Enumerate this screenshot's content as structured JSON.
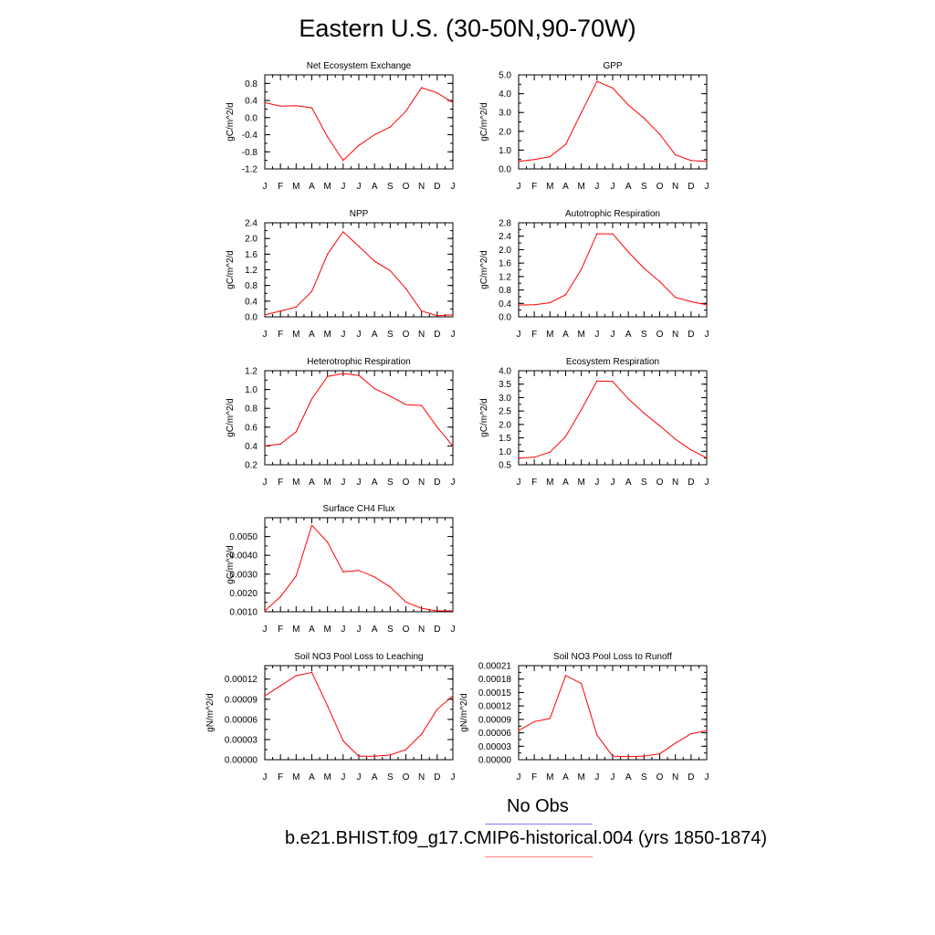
{
  "title": "Eastern U.S. (30-50N,90-70W)",
  "legend": {
    "obs_label": "No Obs",
    "obs_color": "#7f7fff",
    "model_label": "b.e21.BHIST.f09_g17.CMIP6-historical.004 (yrs 1850-1874)",
    "model_color": "#ff7f7f"
  },
  "line_color": "#ff0000",
  "chart_data": [
    {
      "type": "line",
      "title": "Net Ecosystem Exchange",
      "ylabel": "gC/m^2/d",
      "x": [
        "J",
        "F",
        "M",
        "A",
        "M",
        "J",
        "J",
        "A",
        "S",
        "O",
        "N",
        "D",
        "J"
      ],
      "ylim": [
        -1.2,
        1.0
      ],
      "yticks": [
        "-1.2",
        "-0.8",
        "-0.4",
        "0.0",
        "0.4",
        "0.8"
      ],
      "values": [
        0.35,
        0.27,
        0.28,
        0.23,
        -0.45,
        -1.0,
        -0.65,
        -0.4,
        -0.22,
        0.15,
        0.7,
        0.58,
        0.35
      ]
    },
    {
      "type": "line",
      "title": "GPP",
      "ylabel": "gC/m^2/d",
      "x": [
        "J",
        "F",
        "M",
        "A",
        "M",
        "J",
        "J",
        "A",
        "S",
        "O",
        "N",
        "D",
        "J"
      ],
      "ylim": [
        0.0,
        5.0
      ],
      "yticks": [
        "0.0",
        "1.0",
        "2.0",
        "3.0",
        "4.0",
        "5.0"
      ],
      "values": [
        0.4,
        0.5,
        0.65,
        1.3,
        3.0,
        4.65,
        4.3,
        3.4,
        2.7,
        1.85,
        0.75,
        0.45,
        0.4
      ]
    },
    {
      "type": "line",
      "title": "NPP",
      "ylabel": "gC/m^2/d",
      "x": [
        "J",
        "F",
        "M",
        "A",
        "M",
        "J",
        "J",
        "A",
        "S",
        "O",
        "N",
        "D",
        "J"
      ],
      "ylim": [
        0.0,
        2.4
      ],
      "yticks": [
        "0.0",
        "0.4",
        "0.8",
        "1.2",
        "1.6",
        "2.0",
        "2.4"
      ],
      "values": [
        0.05,
        0.15,
        0.25,
        0.65,
        1.6,
        2.17,
        1.8,
        1.42,
        1.18,
        0.72,
        0.15,
        0.03,
        0.05
      ]
    },
    {
      "type": "line",
      "title": "Autotrophic Respiration",
      "ylabel": "gC/m^2/d",
      "x": [
        "J",
        "F",
        "M",
        "A",
        "M",
        "J",
        "J",
        "A",
        "S",
        "O",
        "N",
        "D",
        "J"
      ],
      "ylim": [
        0.0,
        2.8
      ],
      "yticks": [
        "0.0",
        "0.4",
        "0.8",
        "1.2",
        "1.6",
        "2.0",
        "2.4",
        "2.8"
      ],
      "values": [
        0.35,
        0.36,
        0.42,
        0.66,
        1.42,
        2.47,
        2.47,
        1.93,
        1.45,
        1.05,
        0.58,
        0.45,
        0.36
      ]
    },
    {
      "type": "line",
      "title": "Heterotrophic Respiration",
      "ylabel": "gC/m^2/d",
      "x": [
        "J",
        "F",
        "M",
        "A",
        "M",
        "J",
        "J",
        "A",
        "S",
        "O",
        "N",
        "D",
        "J"
      ],
      "ylim": [
        0.2,
        1.2
      ],
      "yticks": [
        "0.2",
        "0.4",
        "0.6",
        "0.8",
        "1.0",
        "1.2"
      ],
      "values": [
        0.4,
        0.42,
        0.55,
        0.9,
        1.14,
        1.17,
        1.15,
        1.01,
        0.93,
        0.84,
        0.83,
        0.6,
        0.4
      ]
    },
    {
      "type": "line",
      "title": "Ecosystem Respiration",
      "ylabel": "gC/m^2/d",
      "x": [
        "J",
        "F",
        "M",
        "A",
        "M",
        "J",
        "J",
        "A",
        "S",
        "O",
        "N",
        "D",
        "J"
      ],
      "ylim": [
        0.5,
        4.0
      ],
      "yticks": [
        "0.5",
        "1.0",
        "1.5",
        "2.0",
        "2.5",
        "3.0",
        "3.5",
        "4.0"
      ],
      "values": [
        0.75,
        0.78,
        0.97,
        1.55,
        2.55,
        3.62,
        3.6,
        2.95,
        2.42,
        1.95,
        1.45,
        1.05,
        0.75
      ]
    },
    {
      "type": "line",
      "title": "Surface CH4 Flux",
      "ylabel": "gC/m^2/d",
      "x": [
        "J",
        "F",
        "M",
        "A",
        "M",
        "J",
        "J",
        "A",
        "S",
        "O",
        "N",
        "D",
        "J"
      ],
      "ylim": [
        0.001,
        0.006
      ],
      "yticks": [
        "0.0010",
        "0.0020",
        "0.0030",
        "0.0040",
        "0.0050"
      ],
      "values": [
        0.00105,
        0.0018,
        0.0029,
        0.0056,
        0.0047,
        0.00312,
        0.0032,
        0.00285,
        0.00232,
        0.00152,
        0.00118,
        0.00105,
        0.00105
      ]
    },
    {
      "type": "line",
      "title": "Soil NO3 Pool Loss to Leaching",
      "ylabel": "gN/m^2/d",
      "x": [
        "J",
        "F",
        "M",
        "A",
        "M",
        "J",
        "J",
        "A",
        "S",
        "O",
        "N",
        "D",
        "J"
      ],
      "ylim": [
        0.0,
        0.00014
      ],
      "yticks": [
        "0.00000",
        "0.00003",
        "0.00006",
        "0.00009",
        "0.00012"
      ],
      "values": [
        9.5e-05,
        0.00011,
        0.000125,
        0.00013,
        8e-05,
        2.8e-05,
        5e-06,
        5e-06,
        7e-06,
        1.5e-05,
        3.8e-05,
        7.5e-05,
        9.5e-05
      ]
    },
    {
      "type": "line",
      "title": "Soil NO3 Pool Loss to Runoff",
      "ylabel": "gN/m^2/d",
      "x": [
        "J",
        "F",
        "M",
        "A",
        "M",
        "J",
        "J",
        "A",
        "S",
        "O",
        "N",
        "D",
        "J"
      ],
      "ylim": [
        0.0,
        0.00021
      ],
      "yticks": [
        "0.00000",
        "0.00003",
        "0.00006",
        "0.00009",
        "0.00012",
        "0.00015",
        "0.00018",
        "0.00021"
      ],
      "values": [
        6.5e-05,
        8.5e-05,
        9.2e-05,
        0.000188,
        0.00017,
        5.5e-05,
        8e-06,
        7e-06,
        8e-06,
        1.3e-05,
        3.7e-05,
        5.8e-05,
        6.5e-05
      ]
    }
  ]
}
